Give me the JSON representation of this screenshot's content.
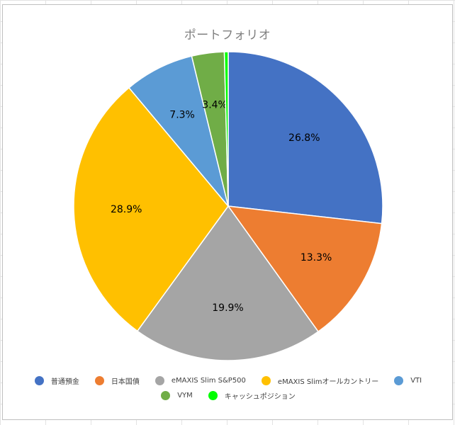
{
  "chart_data": {
    "type": "pie",
    "title": "ポートフォリオ",
    "legend_position": "bottom",
    "slices": [
      {
        "name": "普通預金",
        "value": 26.8,
        "label": "26.8%",
        "color": "#4472C4"
      },
      {
        "name": "日本国債",
        "value": 13.3,
        "label": "13.3%",
        "color": "#ED7D31"
      },
      {
        "name": "eMAXIS Slim S&P500",
        "value": 19.9,
        "label": "19.9%",
        "color": "#A5A5A5"
      },
      {
        "name": "eMAXIS Slimオールカントリー",
        "value": 28.9,
        "label": "28.9%",
        "color": "#FFC000"
      },
      {
        "name": "VTI",
        "value": 7.3,
        "label": "7.3%",
        "color": "#5B9BD5"
      },
      {
        "name": "VYM",
        "value": 3.4,
        "label": "3.4%",
        "color": "#70AD47"
      },
      {
        "name": "キャッシュポジション",
        "value": 0.4,
        "label": "",
        "color": "#00FF00"
      }
    ]
  }
}
